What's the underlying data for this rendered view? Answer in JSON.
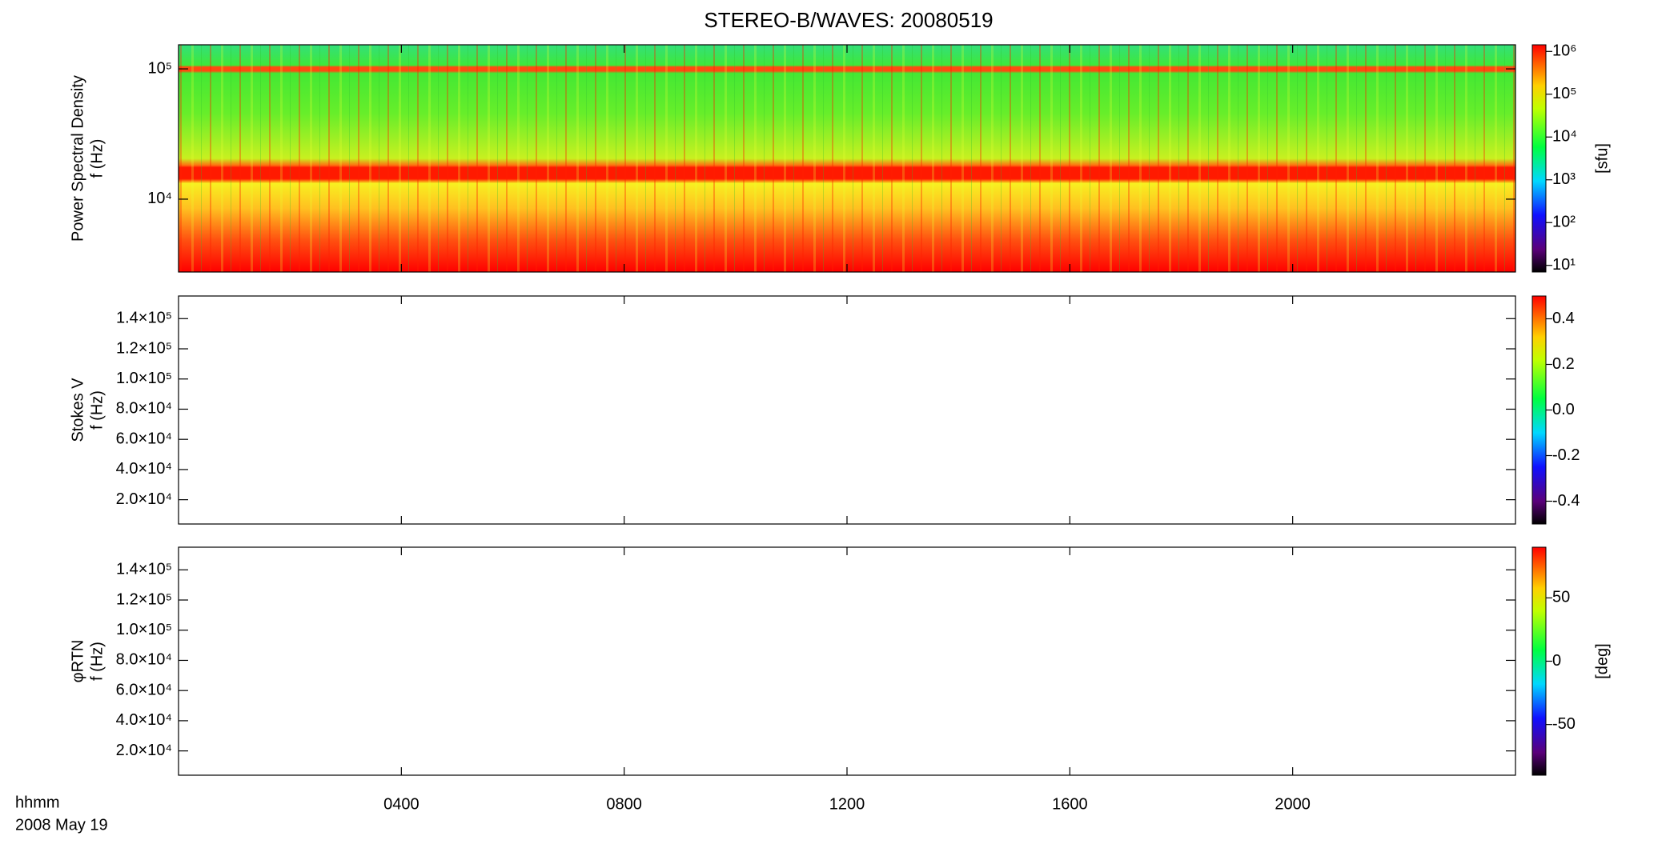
{
  "title": "STEREO-B/WAVES: 20080519",
  "x_labels": [
    "hhmm",
    "2008 May 19"
  ],
  "chart_data": [
    {
      "type": "heatmap",
      "ylabel": [
        "Power Spectral Density",
        "f (Hz)"
      ],
      "ylog": true,
      "xlim": [
        0,
        24
      ],
      "xticks": [
        4,
        8,
        12,
        16,
        20
      ],
      "ylim": [
        2760,
        153000
      ],
      "yticks": [
        {
          "value": 10000,
          "label": "10⁴"
        },
        {
          "value": 100000,
          "label": "10⁵"
        }
      ],
      "colorbar": {
        "label": "[sfu]",
        "log": true,
        "lim": [
          7,
          1430000
        ],
        "ticks": [
          {
            "value": 10,
            "label": "10¹"
          },
          {
            "value": 100,
            "label": "10²"
          },
          {
            "value": 1000,
            "label": "10³"
          },
          {
            "value": 10000,
            "label": "10⁴"
          },
          {
            "value": 100000,
            "label": "10⁵"
          },
          {
            "value": 1000000,
            "label": "10⁶"
          }
        ]
      }
    },
    {
      "type": "heatmap",
      "ylabel": [
        "Stokes V",
        "f (Hz)"
      ],
      "ylog": false,
      "xlim": [
        0,
        24
      ],
      "xticks": [
        4,
        8,
        12,
        16,
        20
      ],
      "ylim": [
        3900,
        155000
      ],
      "yticks": [
        {
          "value": 20000,
          "label": "2.0×10⁴"
        },
        {
          "value": 40000,
          "label": "4.0×10⁴"
        },
        {
          "value": 60000,
          "label": "6.0×10⁴"
        },
        {
          "value": 80000,
          "label": "8.0×10⁴"
        },
        {
          "value": 100000,
          "label": "1.0×10⁵"
        },
        {
          "value": 120000,
          "label": "1.2×10⁵"
        },
        {
          "value": 140000,
          "label": "1.4×10⁵"
        }
      ],
      "colorbar": {
        "log": false,
        "lim": [
          -0.5,
          0.5
        ],
        "ticks": [
          -0.4,
          -0.2,
          {
            "value": 0,
            "label": "0.0"
          },
          0.2,
          0.4
        ]
      }
    },
    {
      "type": "heatmap",
      "ylabel": [
        "φRTN",
        "f (Hz)"
      ],
      "ylog": false,
      "xlim": [
        0,
        24
      ],
      "xticks": [
        {
          "value": 4,
          "label": "0400"
        },
        {
          "value": 8,
          "label": "0800"
        },
        {
          "value": 12,
          "label": "1200"
        },
        {
          "value": 16,
          "label": "1600"
        },
        {
          "value": 20,
          "label": "2000"
        }
      ],
      "ylim": [
        3900,
        155000
      ],
      "yticks": [
        {
          "value": 20000,
          "label": "2.0×10⁴"
        },
        {
          "value": 40000,
          "label": "4.0×10⁴"
        },
        {
          "value": 60000,
          "label": "6.0×10⁴"
        },
        {
          "value": 80000,
          "label": "8.0×10⁴"
        },
        {
          "value": 100000,
          "label": "1.0×10⁵"
        },
        {
          "value": 120000,
          "label": "1.2×10⁵"
        },
        {
          "value": 140000,
          "label": "1.4×10⁵"
        }
      ],
      "colorbar": {
        "label": "[deg]",
        "log": false,
        "lim": [
          -90,
          90
        ],
        "ticks": [
          -50,
          0,
          50
        ]
      }
    }
  ]
}
